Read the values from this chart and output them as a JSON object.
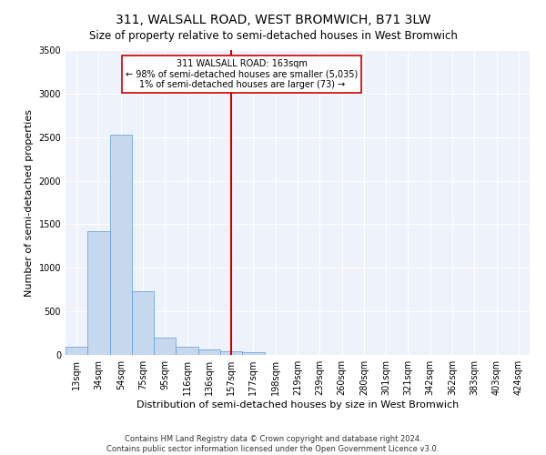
{
  "title": "311, WALSALL ROAD, WEST BROMWICH, B71 3LW",
  "subtitle": "Size of property relative to semi-detached houses in West Bromwich",
  "xlabel": "Distribution of semi-detached houses by size in West Bromwich",
  "ylabel": "Number of semi-detached properties",
  "categories": [
    "13sqm",
    "34sqm",
    "54sqm",
    "75sqm",
    "95sqm",
    "116sqm",
    "136sqm",
    "157sqm",
    "177sqm",
    "198sqm",
    "219sqm",
    "239sqm",
    "260sqm",
    "280sqm",
    "301sqm",
    "321sqm",
    "342sqm",
    "362sqm",
    "383sqm",
    "403sqm",
    "424sqm"
  ],
  "values": [
    90,
    1420,
    2530,
    730,
    200,
    90,
    60,
    45,
    35,
    0,
    0,
    0,
    0,
    0,
    0,
    0,
    0,
    0,
    0,
    0,
    0
  ],
  "bar_color": "#c5d8ee",
  "bar_edge_color": "#5b9bd5",
  "vline_color": "#cc0000",
  "annotation_text": "311 WALSALL ROAD: 163sqm\n← 98% of semi-detached houses are smaller (5,035)\n1% of semi-detached houses are larger (73) →",
  "annotation_box_color": "#ffffff",
  "annotation_box_edge": "#cc0000",
  "ylim": [
    0,
    3500
  ],
  "yticks": [
    0,
    500,
    1000,
    1500,
    2000,
    2500,
    3000,
    3500
  ],
  "footer_line1": "Contains HM Land Registry data © Crown copyright and database right 2024.",
  "footer_line2": "Contains public sector information licensed under the Open Government Licence v3.0.",
  "bg_color": "#eef2fa",
  "grid_color": "#ffffff",
  "title_fontsize": 10,
  "subtitle_fontsize": 8.5,
  "axis_label_fontsize": 8,
  "tick_fontsize": 7,
  "footer_fontsize": 6,
  "vline_index": 7
}
